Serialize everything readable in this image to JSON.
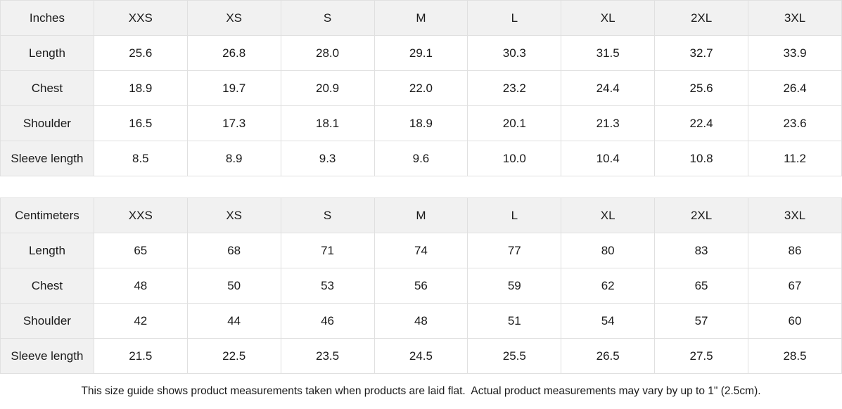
{
  "colors": {
    "header_bg": "#f1f1f1",
    "border": "#e0e0e0",
    "text": "#1a1a1a",
    "background": "#ffffff"
  },
  "sizes": [
    "XXS",
    "XS",
    "S",
    "M",
    "L",
    "XL",
    "2XL",
    "3XL"
  ],
  "tables": [
    {
      "unit_label": "Inches",
      "rows": [
        {
          "label": "Length",
          "values": [
            "25.6",
            "26.8",
            "28.0",
            "29.1",
            "30.3",
            "31.5",
            "32.7",
            "33.9"
          ]
        },
        {
          "label": "Chest",
          "values": [
            "18.9",
            "19.7",
            "20.9",
            "22.0",
            "23.2",
            "24.4",
            "25.6",
            "26.4"
          ]
        },
        {
          "label": "Shoulder",
          "values": [
            "16.5",
            "17.3",
            "18.1",
            "18.9",
            "20.1",
            "21.3",
            "22.4",
            "23.6"
          ]
        },
        {
          "label": "Sleeve length",
          "values": [
            "8.5",
            "8.9",
            "9.3",
            "9.6",
            "10.0",
            "10.4",
            "10.8",
            "11.2"
          ]
        }
      ]
    },
    {
      "unit_label": "Centimeters",
      "rows": [
        {
          "label": "Length",
          "values": [
            "65",
            "68",
            "71",
            "74",
            "77",
            "80",
            "83",
            "86"
          ]
        },
        {
          "label": "Chest",
          "values": [
            "48",
            "50",
            "53",
            "56",
            "59",
            "62",
            "65",
            "67"
          ]
        },
        {
          "label": "Shoulder",
          "values": [
            "42",
            "44",
            "46",
            "48",
            "51",
            "54",
            "57",
            "60"
          ]
        },
        {
          "label": "Sleeve length",
          "values": [
            "21.5",
            "22.5",
            "23.5",
            "24.5",
            "25.5",
            "26.5",
            "27.5",
            "28.5"
          ]
        }
      ]
    }
  ],
  "footnote": "This size guide shows product measurements taken when products are laid flat.  Actual product measurements may vary by up to 1\" (2.5cm)."
}
